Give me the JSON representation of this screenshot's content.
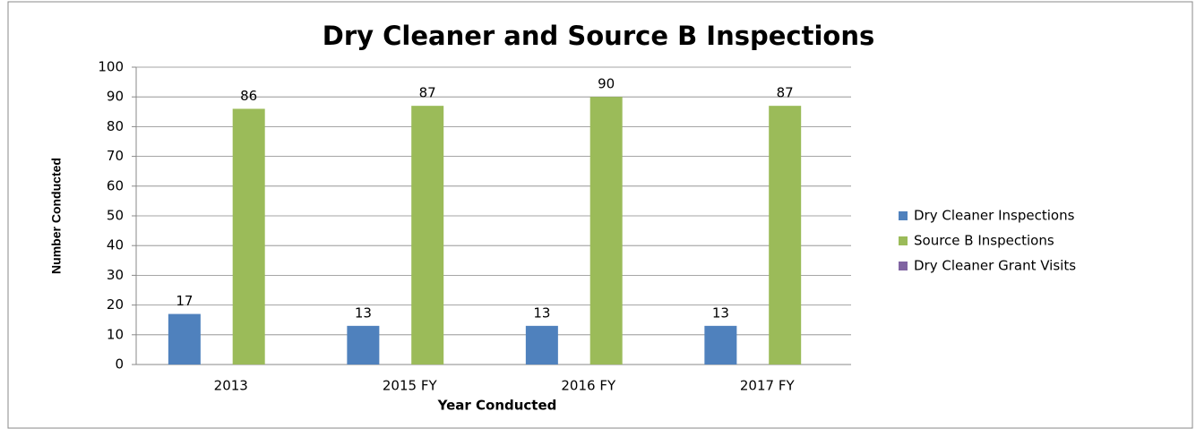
{
  "chart_data": {
    "type": "bar",
    "title": "Dry Cleaner and Source B Inspections",
    "x_label": "Year Conducted",
    "y_label": "Number Conducted",
    "categories": [
      "2013",
      "2015 FY",
      "2016 FY",
      "2017 FY"
    ],
    "series": [
      {
        "name": "Dry Cleaner Inspections",
        "color": "#4f81bd",
        "values": [
          17,
          13,
          13,
          13
        ]
      },
      {
        "name": "Source B Inspections",
        "color": "#9bbb59",
        "values": [
          86,
          87,
          90,
          87
        ]
      },
      {
        "name": "Dry Cleaner Grant Visits",
        "color": "#8064a2",
        "values": [
          0,
          0,
          0,
          0
        ]
      }
    ],
    "ylim": [
      0,
      100
    ],
    "yticks": [
      0,
      10,
      20,
      30,
      40,
      50,
      60,
      70,
      80,
      90,
      100
    ],
    "grid": true,
    "legend": "right"
  }
}
